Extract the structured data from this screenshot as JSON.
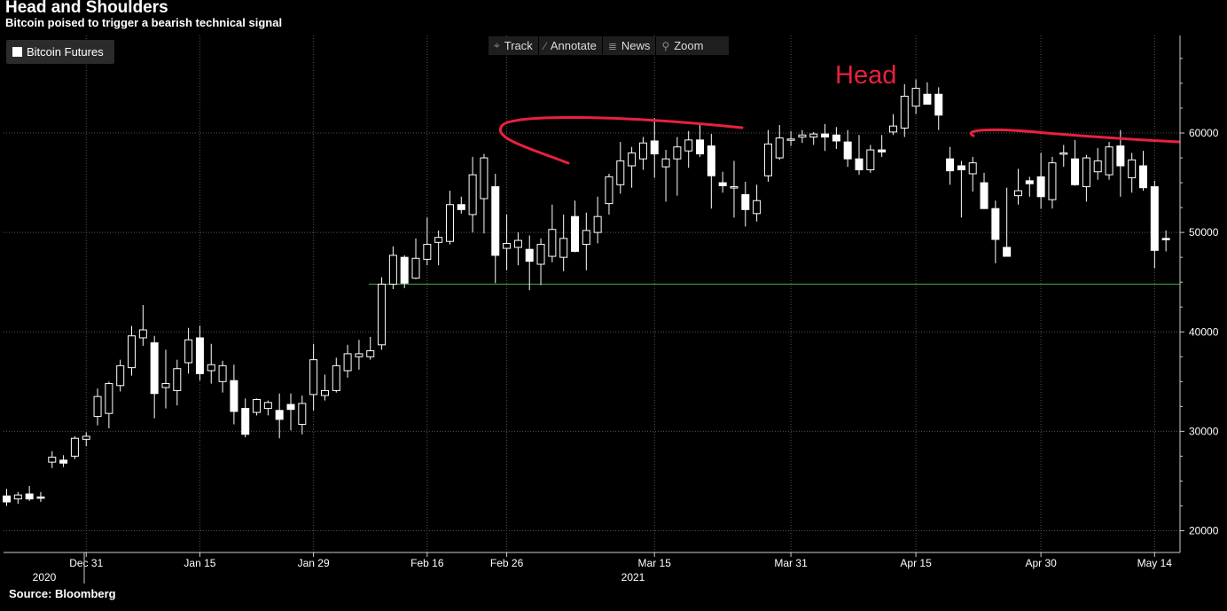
{
  "title": "Head and Shoulders",
  "subtitle": "Bitcoin poised to trigger a bearish technical signal",
  "source": "Source: Bloomberg",
  "legend": {
    "label": "Bitcoin Futures",
    "color": "#ffffff"
  },
  "toolbar": [
    {
      "label": "Track",
      "icon": "crosshair-icon",
      "glyph": "⌖"
    },
    {
      "label": "Annotate",
      "icon": "pencil-icon",
      "glyph": "∕"
    },
    {
      "label": "News",
      "icon": "news-icon",
      "glyph": "≣"
    },
    {
      "label": "Zoom",
      "icon": "zoom-icon",
      "glyph": "⚲"
    }
  ],
  "annotation": {
    "text": "Head",
    "color": "#e8213f"
  },
  "colors": {
    "background": "#000000",
    "candle": "#ffffff",
    "neckline": "#39b54a",
    "shoulder_curves": "#e8213f",
    "grid": "#555555"
  },
  "chart_data": {
    "type": "candlestick",
    "title": "Head and Shoulders",
    "subtitle": "Bitcoin poised to trigger a bearish technical signal",
    "series_name": "Bitcoin Futures",
    "y_ticks": [
      20000,
      30000,
      40000,
      50000,
      60000
    ],
    "y_tick_labels": [
      "20000",
      "30000",
      "40000",
      "50000",
      "60000"
    ],
    "ylim": [
      17000,
      70000
    ],
    "x_tick_labels": [
      "Dec 31",
      "Jan 15",
      "Jan 29",
      "Feb 16",
      "Feb 26",
      "Mar 15",
      "Mar 31",
      "Apr 15",
      "Apr 30",
      "May 14"
    ],
    "year_labels": [
      "2020",
      "2021"
    ],
    "grid": true,
    "neckline": 44800,
    "candles": [
      [
        23500,
        24200,
        22500,
        22900
      ],
      [
        23200,
        23900,
        22700,
        23600
      ],
      [
        23700,
        24500,
        23000,
        23200
      ],
      [
        23400,
        23900,
        22900,
        23300
      ],
      [
        26900,
        28000,
        26300,
        27400
      ],
      [
        27100,
        27600,
        26400,
        26800
      ],
      [
        27500,
        29500,
        27200,
        29300
      ],
      [
        29200,
        29900,
        28500,
        29500
      ],
      [
        31500,
        34300,
        30600,
        33500
      ],
      [
        31800,
        35000,
        30300,
        34800
      ],
      [
        34600,
        37200,
        34000,
        36600
      ],
      [
        36400,
        40600,
        35600,
        39600
      ],
      [
        39400,
        42700,
        38600,
        40200
      ],
      [
        38900,
        39600,
        31300,
        33800
      ],
      [
        34400,
        38200,
        32300,
        34800
      ],
      [
        34100,
        37200,
        32600,
        36300
      ],
      [
        36900,
        40400,
        35800,
        39200
      ],
      [
        39400,
        40600,
        35100,
        35800
      ],
      [
        36100,
        38800,
        34800,
        36700
      ],
      [
        35000,
        37100,
        33900,
        36600
      ],
      [
        35100,
        36700,
        30700,
        32000
      ],
      [
        32300,
        33300,
        29400,
        29700
      ],
      [
        31900,
        33300,
        31600,
        33200
      ],
      [
        32300,
        33100,
        31600,
        32900
      ],
      [
        32100,
        33800,
        29300,
        31200
      ],
      [
        32700,
        33800,
        30100,
        32200
      ],
      [
        30700,
        33600,
        29700,
        32800
      ],
      [
        33700,
        38800,
        32100,
        37200
      ],
      [
        33600,
        35700,
        33100,
        34100
      ],
      [
        34100,
        37400,
        33900,
        36600
      ],
      [
        36100,
        38700,
        35400,
        37800
      ],
      [
        37500,
        39200,
        36200,
        37800
      ],
      [
        37500,
        39500,
        37200,
        38100
      ],
      [
        38700,
        45500,
        38200,
        44800
      ],
      [
        44800,
        48600,
        44300,
        47700
      ],
      [
        47500,
        47700,
        44400,
        44900
      ],
      [
        45400,
        49400,
        45300,
        47400
      ],
      [
        47300,
        51500,
        46700,
        48800
      ],
      [
        49000,
        50200,
        46700,
        49500
      ],
      [
        49100,
        54200,
        48800,
        52800
      ],
      [
        52800,
        53600,
        51900,
        52300
      ],
      [
        51800,
        57600,
        50000,
        55800
      ],
      [
        53400,
        57900,
        49900,
        57500
      ],
      [
        54600,
        55900,
        44900,
        47700
      ],
      [
        48400,
        51800,
        46200,
        48900
      ],
      [
        48500,
        50000,
        46700,
        49200
      ],
      [
        48300,
        49700,
        44200,
        47100
      ],
      [
        46800,
        49400,
        44700,
        48800
      ],
      [
        47600,
        52800,
        47000,
        50300
      ],
      [
        47500,
        51800,
        46100,
        49400
      ],
      [
        51600,
        53200,
        48000,
        48100
      ],
      [
        48800,
        52000,
        46200,
        50200
      ],
      [
        50000,
        53600,
        48900,
        51600
      ],
      [
        52900,
        55900,
        51800,
        55600
      ],
      [
        54800,
        59100,
        53900,
        57200
      ],
      [
        56700,
        58600,
        54500,
        58000
      ],
      [
        57400,
        59600,
        56300,
        59000
      ],
      [
        59200,
        61500,
        55500,
        57900
      ],
      [
        56600,
        58300,
        53100,
        57400
      ],
      [
        57400,
        59600,
        53700,
        58600
      ],
      [
        58200,
        60200,
        56500,
        59300
      ],
      [
        59300,
        60900,
        57600,
        57900
      ],
      [
        58700,
        59900,
        52400,
        55700
      ],
      [
        55000,
        56100,
        54000,
        54700
      ],
      [
        54600,
        57200,
        51500,
        54600
      ],
      [
        53800,
        55100,
        50600,
        52300
      ],
      [
        51900,
        54800,
        51100,
        53200
      ],
      [
        55700,
        60300,
        55100,
        58900
      ],
      [
        57500,
        60800,
        57300,
        59500
      ],
      [
        59300,
        60200,
        58700,
        59400
      ],
      [
        59600,
        60300,
        59000,
        59800
      ],
      [
        59600,
        60100,
        58800,
        59900
      ],
      [
        59900,
        60900,
        58200,
        59600
      ],
      [
        59800,
        60600,
        58400,
        59200
      ],
      [
        59100,
        60300,
        56600,
        57400
      ],
      [
        57400,
        59800,
        55800,
        56300
      ],
      [
        56300,
        58800,
        56000,
        58300
      ],
      [
        58300,
        59800,
        57600,
        58100
      ],
      [
        60100,
        61900,
        59800,
        60700
      ],
      [
        60500,
        64900,
        59600,
        63700
      ],
      [
        62700,
        65400,
        61900,
        64500
      ],
      [
        63900,
        65100,
        62900,
        62900
      ],
      [
        63900,
        64600,
        60300,
        61800
      ],
      [
        57400,
        58600,
        54800,
        56200
      ],
      [
        56700,
        57200,
        51500,
        56300
      ],
      [
        55900,
        57600,
        54100,
        57000
      ],
      [
        55000,
        56000,
        52700,
        52400
      ],
      [
        52400,
        53200,
        46900,
        49300
      ],
      [
        48500,
        54500,
        47600,
        47600
      ],
      [
        53700,
        56400,
        52800,
        54200
      ],
      [
        55200,
        55600,
        53600,
        54900
      ],
      [
        55600,
        58000,
        52400,
        53600
      ],
      [
        53300,
        57600,
        52400,
        57000
      ],
      [
        57900,
        58800,
        56600,
        58000
      ],
      [
        57400,
        59300,
        54700,
        54800
      ],
      [
        54600,
        57800,
        53100,
        57500
      ],
      [
        56100,
        58500,
        55300,
        57200
      ],
      [
        55800,
        59100,
        55300,
        58600
      ],
      [
        58700,
        60300,
        53600,
        56700
      ],
      [
        55500,
        58000,
        54000,
        57300
      ],
      [
        56700,
        58200,
        54200,
        54500
      ],
      [
        54600,
        55200,
        46400,
        48200
      ],
      [
        49400,
        50200,
        48100,
        49300
      ]
    ]
  }
}
